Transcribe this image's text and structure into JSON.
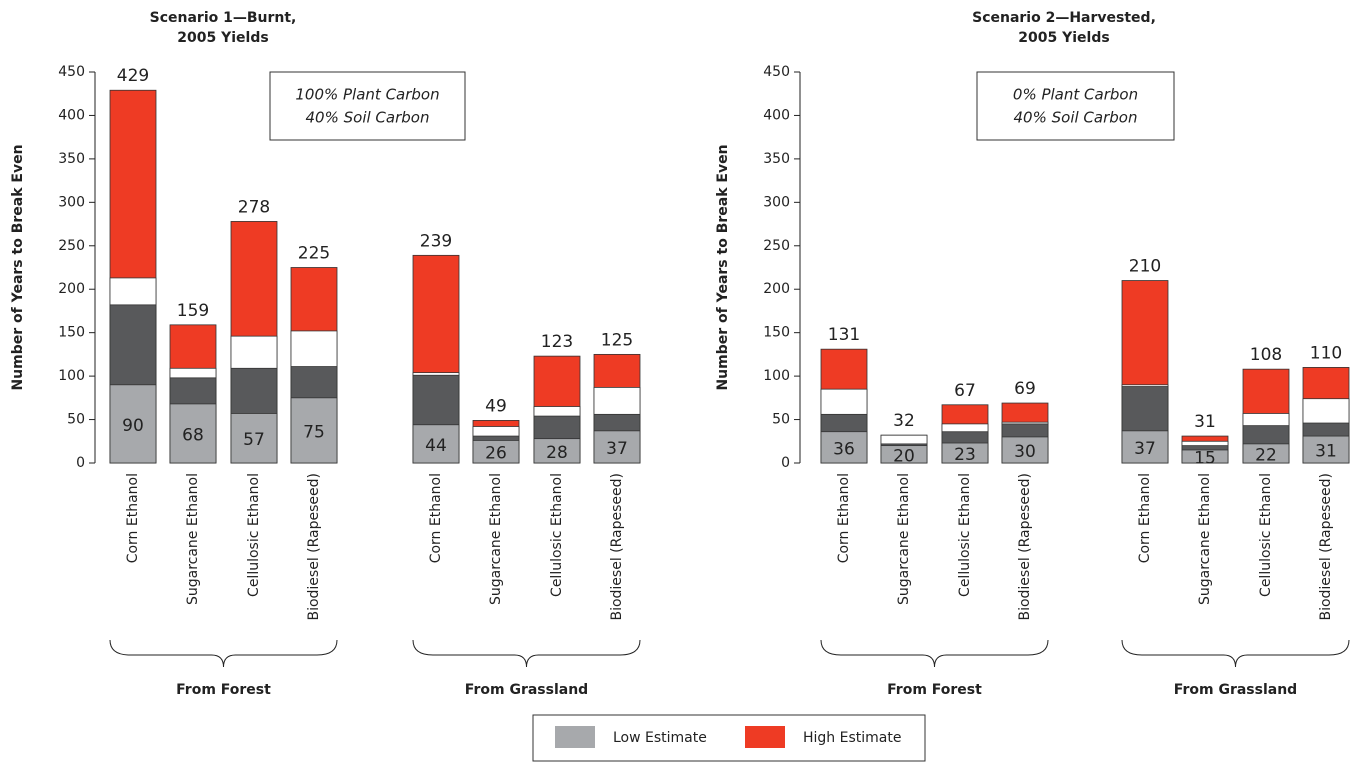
{
  "chart_data": [
    {
      "type": "bar",
      "stacked": false,
      "title": [
        "Scenario 1—Burnt,",
        "2005 Yields"
      ],
      "y_label": "Number of Years to Break Even",
      "annotation": [
        "100% Plant Carbon",
        "40% Soil Carbon"
      ],
      "categories": [
        "Corn Ethanol",
        "Sugarcane Ethanol",
        "Cellulosic Ethanol",
        "Biodiesel (Rapeseed)",
        "Corn Ethanol",
        "Sugarcane Ethanol",
        "Cellulosic Ethanol",
        "Biodiesel (Rapeseed)"
      ],
      "group_labels": [
        "From Forest",
        "From Grassland"
      ],
      "ylim": [
        0,
        450
      ],
      "yticks": [
        0,
        50,
        100,
        150,
        200,
        250,
        300,
        350,
        400,
        450
      ],
      "series": [
        {
          "name": "Low Estimate",
          "color": "#a7a9ac",
          "values": [
            90,
            68,
            57,
            75,
            44,
            26,
            28,
            37
          ]
        },
        {
          "color": "#58595b",
          "values": [
            182,
            98,
            109,
            111,
            101,
            31,
            54,
            56
          ]
        },
        {
          "color": "#ffffff",
          "values": [
            213,
            109,
            146,
            152,
            104,
            42,
            65,
            87
          ]
        },
        {
          "name": "High Estimate",
          "color": "#ee3b24",
          "values": [
            429,
            159,
            278,
            225,
            239,
            49,
            123,
            125
          ]
        }
      ]
    },
    {
      "type": "bar",
      "stacked": false,
      "title": [
        "Scenario 2—Harvested,",
        "2005 Yields"
      ],
      "y_label": "Number of Years to Break Even",
      "annotation": [
        "0% Plant Carbon",
        "40% Soil Carbon"
      ],
      "categories": [
        "Corn Ethanol",
        "Sugarcane Ethanol",
        "Cellulosic Ethanol",
        "Biodiesel (Rapeseed)",
        "Corn Ethanol",
        "Sugarcane Ethanol",
        "Cellulosic Ethanol",
        "Biodiesel (Rapeseed)"
      ],
      "group_labels": [
        "From Forest",
        "From Grassland"
      ],
      "ylim": [
        0,
        450
      ],
      "yticks": [
        0,
        50,
        100,
        150,
        200,
        250,
        300,
        350,
        400,
        450
      ],
      "series": [
        {
          "name": "Low Estimate",
          "color": "#a7a9ac",
          "values": [
            36,
            20,
            23,
            30,
            37,
            15,
            22,
            31
          ]
        },
        {
          "color": "#58595b",
          "values": [
            56,
            22,
            36,
            45,
            88,
            20,
            43,
            46
          ]
        },
        {
          "color": "#ffffff",
          "values": [
            85,
            32,
            45,
            47,
            90,
            25,
            57,
            74
          ]
        },
        {
          "name": "High Estimate",
          "color": "#ee3b24",
          "values": [
            131,
            32,
            67,
            69,
            210,
            31,
            108,
            110
          ]
        }
      ]
    }
  ]
}
